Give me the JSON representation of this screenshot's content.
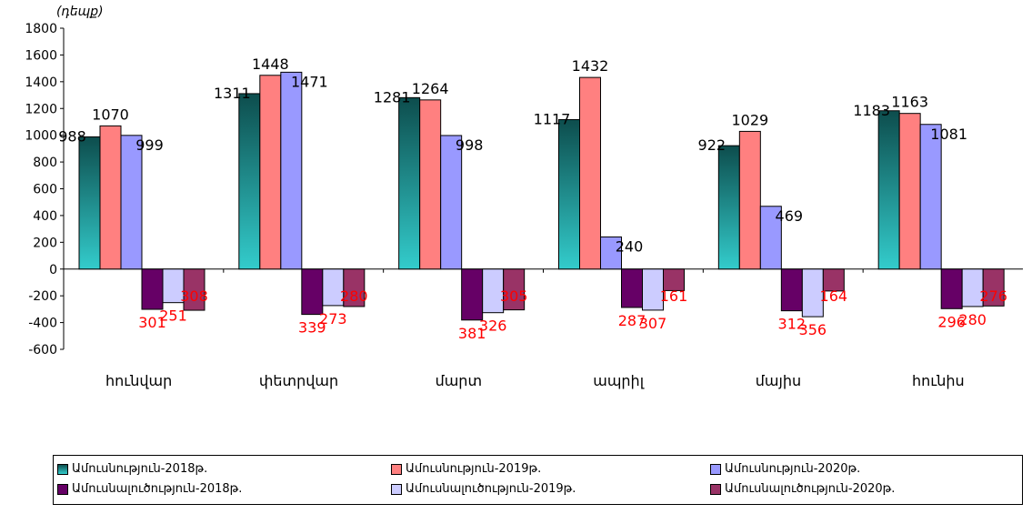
{
  "chart_data": {
    "type": "bar",
    "unit_label": "(դեպք)",
    "categories": [
      "հունվար",
      "փետրվար",
      "մարտ",
      "ապրիլ",
      "մայիս",
      "հունիս"
    ],
    "ylim": [
      -600,
      1800
    ],
    "yticks": [
      -600,
      -400,
      -200,
      0,
      200,
      400,
      600,
      800,
      1000,
      1200,
      1400,
      1600,
      1800
    ],
    "grid": false,
    "legend_position": "bottom",
    "series": [
      {
        "name": "Ամուսնություն-2018թ.",
        "values": [
          988,
          1311,
          1281,
          1117,
          922,
          1183
        ],
        "labels": [
          "988",
          "1311",
          "1281",
          "1117",
          "922",
          "1183"
        ],
        "color": "#1a8a8a",
        "label_color": "#000000"
      },
      {
        "name": "Ամուսնություն-2019թ.",
        "values": [
          1070,
          1448,
          1264,
          1432,
          1029,
          1163
        ],
        "labels": [
          "1070",
          "1448",
          "1264",
          "1432",
          "1029",
          "1163"
        ],
        "color": "#ff8080",
        "label_color": "#000000"
      },
      {
        "name": "Ամուսնություն-2020թ.",
        "values": [
          999,
          1471,
          998,
          240,
          469,
          1081
        ],
        "labels": [
          "999",
          "1471",
          "998",
          "240",
          "469",
          "1081"
        ],
        "color": "#9999ff",
        "label_color": "#000000"
      },
      {
        "name": "Ամուսնալուծություն-2018թ.",
        "values": [
          -301,
          -339,
          -381,
          -287,
          -312,
          -296
        ],
        "labels": [
          "301",
          "339",
          "381",
          "287",
          "312",
          "296"
        ],
        "color": "#660066",
        "label_color": "#ff0000"
      },
      {
        "name": "Ամուսնալուծություն-2019թ.",
        "values": [
          -251,
          -273,
          -326,
          -307,
          -356,
          -280
        ],
        "labels": [
          "251",
          "273",
          "326",
          "307",
          "356",
          "280"
        ],
        "color": "#ccccff",
        "label_color": "#ff0000"
      },
      {
        "name": "Ամուսնալուծություն-2020թ.",
        "values": [
          -308,
          -280,
          -305,
          -161,
          -164,
          -276
        ],
        "labels": [
          "308",
          "280",
          "305",
          "161",
          "164",
          "276"
        ],
        "color": "#993366",
        "label_color": "#ff0000"
      }
    ]
  }
}
